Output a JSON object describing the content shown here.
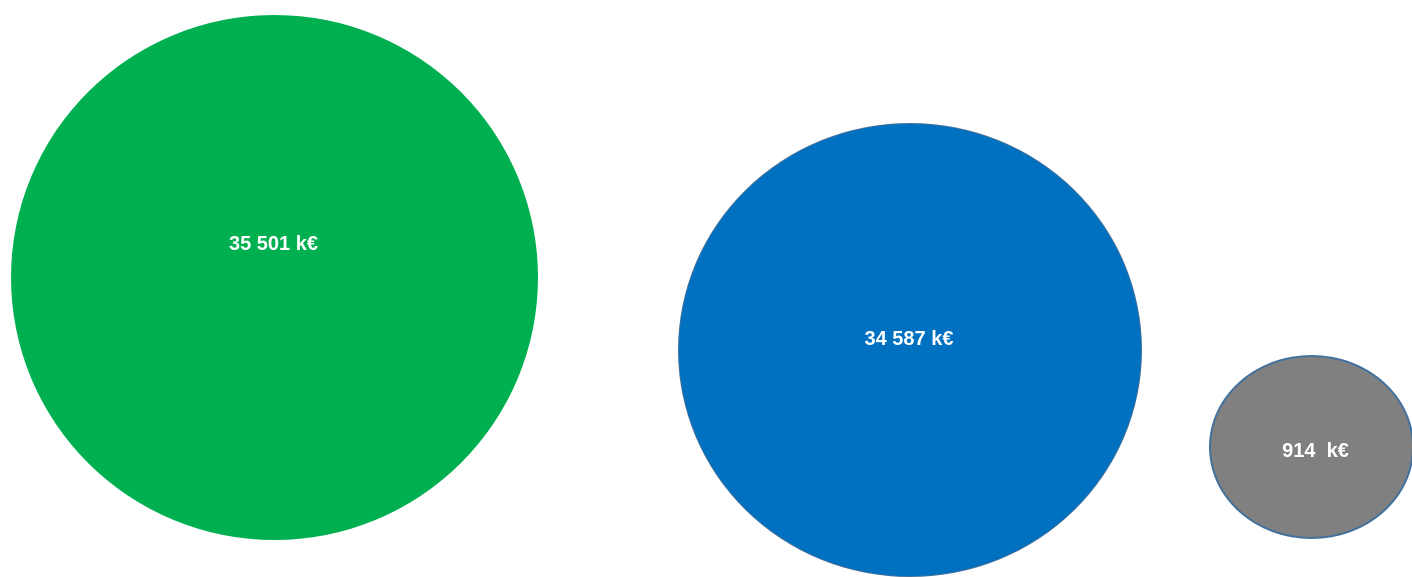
{
  "bubbles": [
    {
      "label": "35 501 k€",
      "value_k_eur": 35501,
      "color": "#00b050",
      "border": "none"
    },
    {
      "label": "34 587 k€",
      "value_k_eur": 34587,
      "color": "#0070c0",
      "border": "#41719c"
    },
    {
      "label": "914  k€",
      "value_k_eur": 914,
      "color": "#808080",
      "border": "#41719c"
    }
  ]
}
